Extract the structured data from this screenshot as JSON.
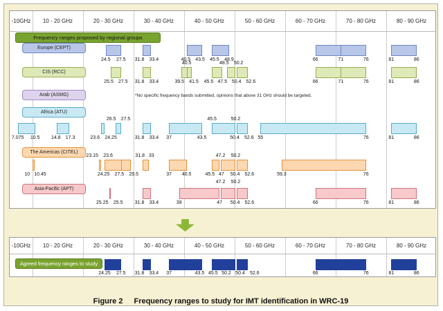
{
  "axis_columns": [
    "-10GHz",
    "10 - 20 GHz",
    "20 - 30 GHz",
    "30 - 40 GHz",
    "40 - 50 GHz",
    "50 - 60 GHz",
    "60 - 70 GHz",
    "70 - 80 GHz",
    "80 - 90 GHz"
  ],
  "badges": {
    "proposed": "Frequency ranges proposed by regional groups",
    "agreed": "Agreed frequency ranges to study"
  },
  "caption": {
    "label": "Figure 2",
    "text": "Frequency ranges to study for IMT identification in WRC-19"
  },
  "chart_data": {
    "type": "range-bars",
    "unit": "GHz",
    "axis": {
      "min": 6.5,
      "max": 90,
      "column_boundaries": [
        10,
        20,
        30,
        40,
        50,
        60,
        70,
        80,
        90
      ]
    },
    "rows": [
      {
        "group": "Europe (CEPT)",
        "fill": "#b8c7e8",
        "border": "#6e86c4",
        "bands": [
          [
            24.5,
            27.5
          ],
          [
            31.8,
            33.4
          ],
          [
            40.5,
            43.5
          ],
          [
            45.5,
            48.9
          ],
          [
            66,
            76
          ],
          [
            81,
            86
          ]
        ],
        "dividers": [
          71
        ],
        "labels_below": [
          24.5,
          27.5,
          31.8,
          33.4,
          40.5,
          43.5,
          45.5,
          48.9,
          66,
          71,
          76,
          81,
          86
        ],
        "labels_above": []
      },
      {
        "group": "CIS (RCC)",
        "fill": "#dde9b7",
        "border": "#9aaa50",
        "bands": [
          [
            25.5,
            27.5
          ],
          [
            31.8,
            33.4
          ],
          [
            39.5,
            41.5
          ],
          [
            45.5,
            47.5
          ],
          [
            48.5,
            50.2
          ],
          [
            50.4,
            52.6
          ],
          [
            66,
            76
          ],
          [
            81,
            86
          ]
        ],
        "dividers": [
          40.5,
          71
        ],
        "labels_below": [
          25.5,
          27.5,
          31.8,
          33.4,
          39.5,
          41.5,
          45.5,
          47.5,
          50.4,
          52.6,
          66,
          71,
          76,
          81,
          86
        ],
        "labels_above": [
          40.5,
          48.5,
          50.2
        ]
      },
      {
        "group": "Arab (ASMG)",
        "fill": "#ded3ec",
        "border": "#a08ac4",
        "bands": [],
        "dividers": [],
        "labels_below": [],
        "labels_above": [],
        "note": "*No specific frequency bands submitted, opinions that above 31 GHz should be targeted."
      },
      {
        "group": "Africa (ATU)",
        "fill": "#c8e9f4",
        "border": "#56aac8",
        "bands": [
          [
            7.075,
            10.5
          ],
          [
            14.8,
            17.3
          ],
          [
            23.6,
            24.25
          ],
          [
            26.5,
            27.5
          ],
          [
            31.8,
            33.4
          ],
          [
            37,
            43.5
          ],
          [
            45.5,
            50.2
          ],
          [
            50.4,
            52.6
          ],
          [
            55,
            76
          ],
          [
            81,
            86
          ]
        ],
        "dividers": [],
        "labels_below": [
          7.075,
          10.5,
          14.8,
          17.3,
          23.6,
          24.25,
          31.8,
          33.4,
          37,
          43.5,
          50.4,
          52.6,
          55,
          76,
          81,
          86
        ],
        "labels_above": [
          26.5,
          27.5,
          45.5,
          50.2
        ]
      },
      {
        "group": "The Americas (CITEL)",
        "fill": "#fcd8b0",
        "border": "#e6913c",
        "bands": [
          [
            10,
            10.45
          ],
          [
            23.15,
            23.6
          ],
          [
            24.25,
            29.5
          ],
          [
            31.8,
            33
          ],
          [
            37,
            40.5
          ],
          [
            45.5,
            47
          ],
          [
            47.2,
            50.2
          ],
          [
            50.4,
            52.6
          ],
          [
            59.3,
            76
          ]
        ],
        "dividers": [
          27.5
        ],
        "labels_below": [
          10,
          10.45,
          24.25,
          27.5,
          29.5,
          37,
          40.5,
          45.5,
          47,
          50.4,
          52.6,
          59.3,
          76
        ],
        "labels_above": [
          23.15,
          23.6,
          31.8,
          33,
          47.2,
          50.2
        ]
      },
      {
        "group": "Asia-Pacific (APT)",
        "fill": "#f7c9ca",
        "border": "#cd727b",
        "bands": [
          [
            25.25,
            25.5
          ],
          [
            31.8,
            33.4
          ],
          [
            39,
            47
          ],
          [
            47.2,
            50.2
          ],
          [
            50.4,
            52.6
          ],
          [
            66,
            76
          ],
          [
            81,
            86
          ]
        ],
        "dividers": [],
        "labels_below": [
          25.25,
          25.5,
          31.8,
          33.4,
          39,
          47,
          50.4,
          52.6,
          66,
          76,
          81,
          86
        ],
        "labels_above": [
          47.2,
          50.2
        ]
      }
    ],
    "agreed": {
      "fill": "#21409b",
      "border": "#21409b",
      "bands": [
        [
          24.25,
          27.5
        ],
        [
          31.8,
          33.4
        ],
        [
          37,
          43.5
        ],
        [
          45.5,
          50.2
        ],
        [
          50.4,
          52.6
        ],
        [
          66,
          76
        ],
        [
          81,
          86
        ]
      ],
      "labels_below": [
        24.25,
        27.5,
        31.8,
        33.4,
        37,
        43.5,
        45.5,
        50.2,
        50.4,
        52.6,
        66,
        76,
        81,
        86
      ]
    }
  }
}
